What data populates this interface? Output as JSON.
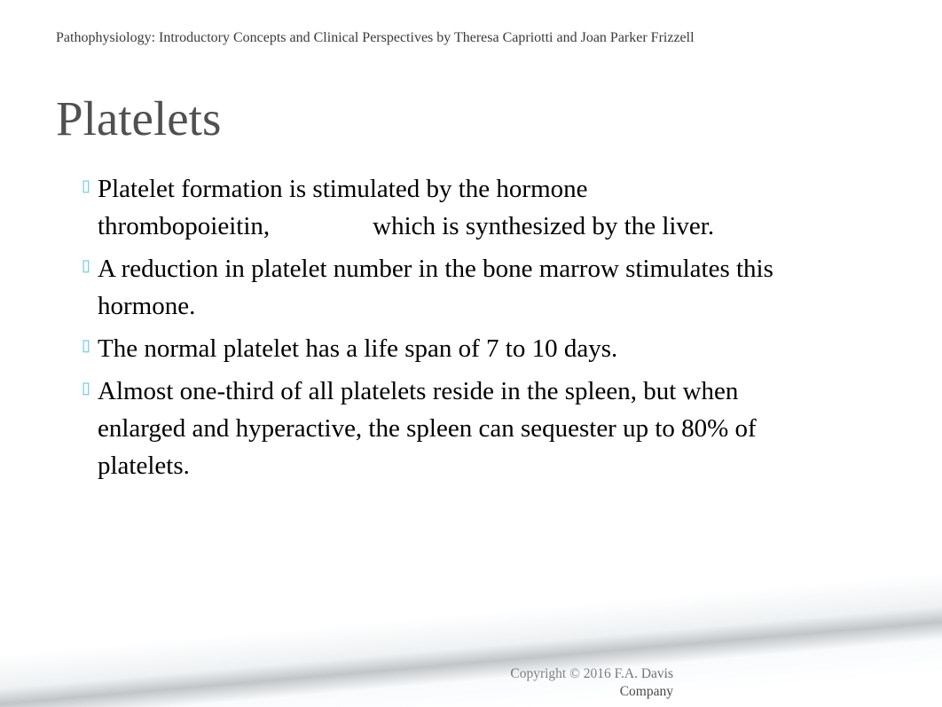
{
  "header": {
    "text": "Pathophysiology: Introductory Concepts and Clinical Perspectives by Theresa Capriotti and Joan Parker Frizzell"
  },
  "title": "Platelets",
  "bullets": [
    "Platelet formation is stimulated by the hormone thrombopoieitin,    which is synthesized by the liver.",
    "A reduction in platelet number in the bone marrow stimulates this hormone.",
    "The normal platelet has a life span of 7 to 10 days.",
    "Almost one-third of all platelets reside in the spleen, but when enlarged and hyperactive, the spleen can sequester up to 80% of platelets."
  ],
  "footer": {
    "text": "Copyright © 2016 F.A. Davis Company"
  },
  "colors": {
    "bullet_marker": "#5dc1e6",
    "title_color": "#505050",
    "header_color": "#3a3a3a",
    "body_text": "#000000",
    "background": "#ffffff"
  },
  "typography": {
    "header_fontsize": 16,
    "title_fontsize": 55,
    "bullet_fontsize": 29,
    "footer_fontsize": 15.5,
    "font_family": "Georgia, serif"
  }
}
